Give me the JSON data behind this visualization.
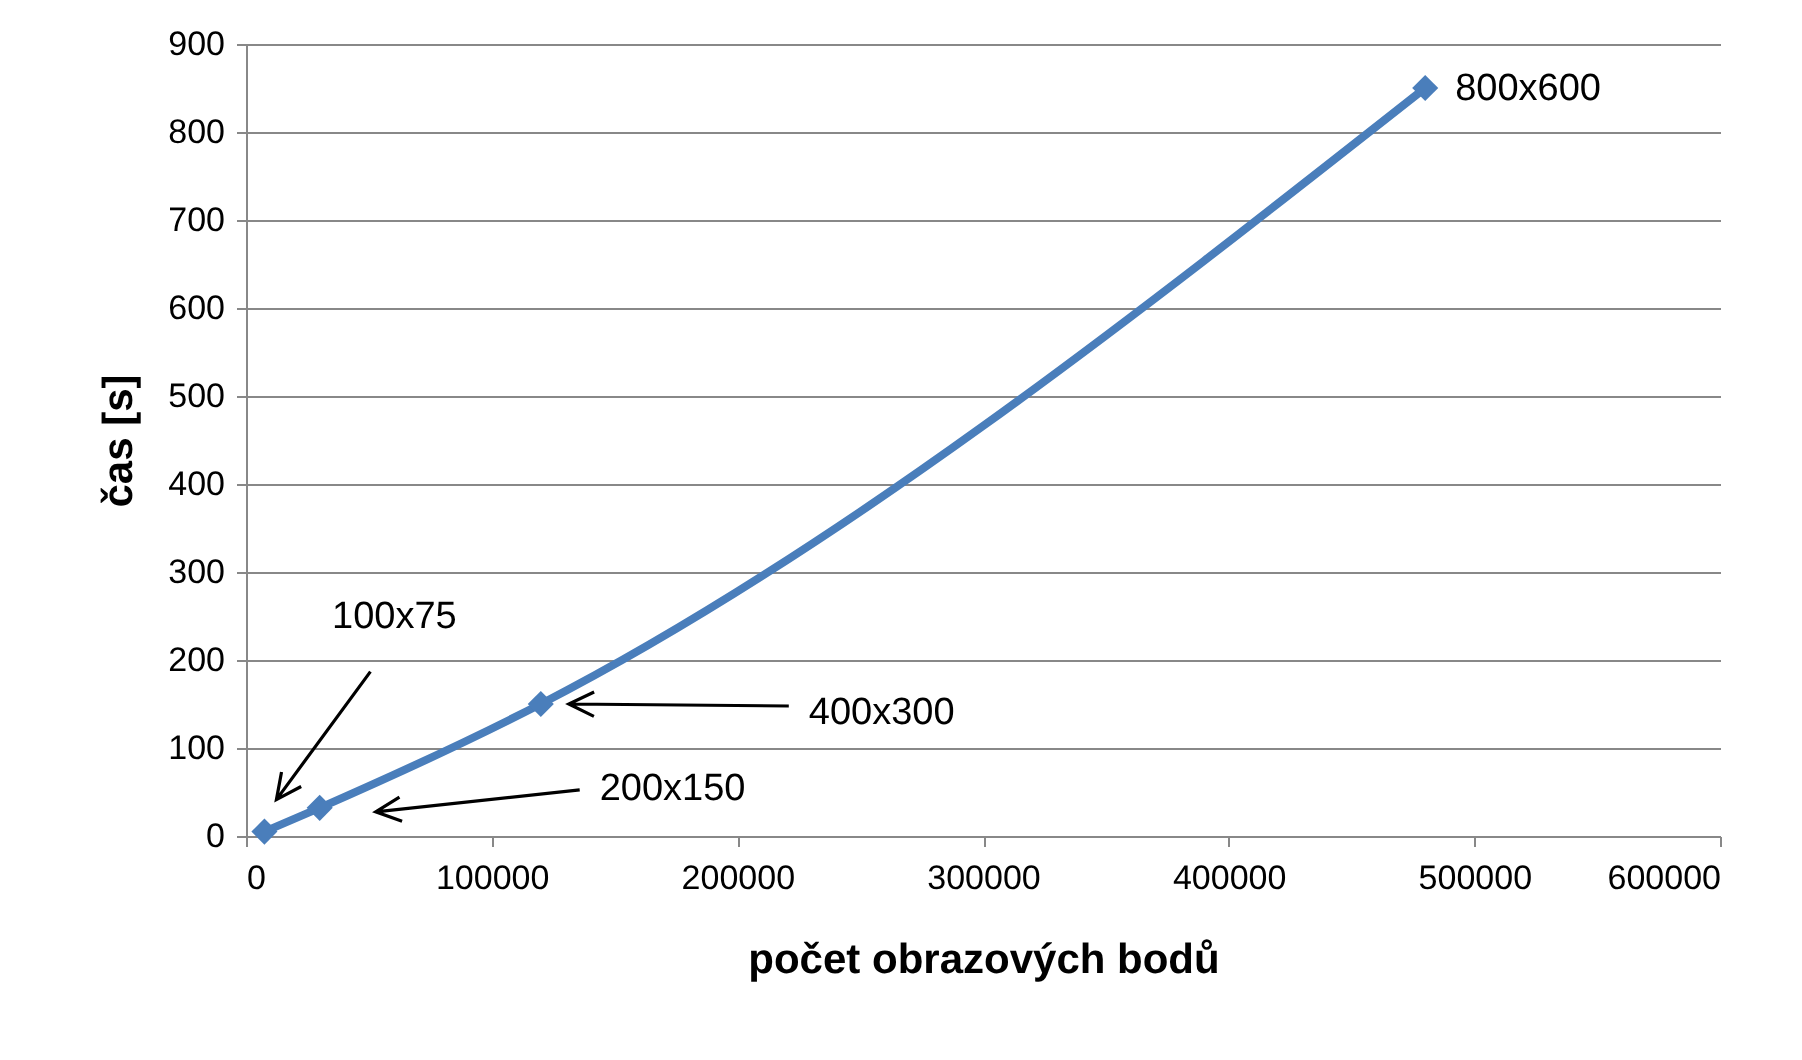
{
  "chart_data": {
    "type": "line",
    "xlabel": "počet obrazových bodů",
    "ylabel": "čas [s]",
    "x": [
      7500,
      30000,
      120000,
      480000
    ],
    "series": [
      {
        "color": "#4a7ebb",
        "values": [
          5,
          32,
          150,
          850
        ]
      }
    ],
    "xlim": [
      0,
      600000
    ],
    "xticks": [
      0,
      100000,
      200000,
      300000,
      400000,
      500000,
      600000
    ],
    "ylim": [
      0,
      900
    ],
    "yticks": [
      0,
      100,
      200,
      300,
      400,
      500,
      600,
      700,
      800,
      900
    ],
    "grid": "y",
    "marker": "diamond",
    "line_style": "solid",
    "annotations": [
      "100x75",
      "200x150",
      "400x300",
      "800x600"
    ]
  }
}
